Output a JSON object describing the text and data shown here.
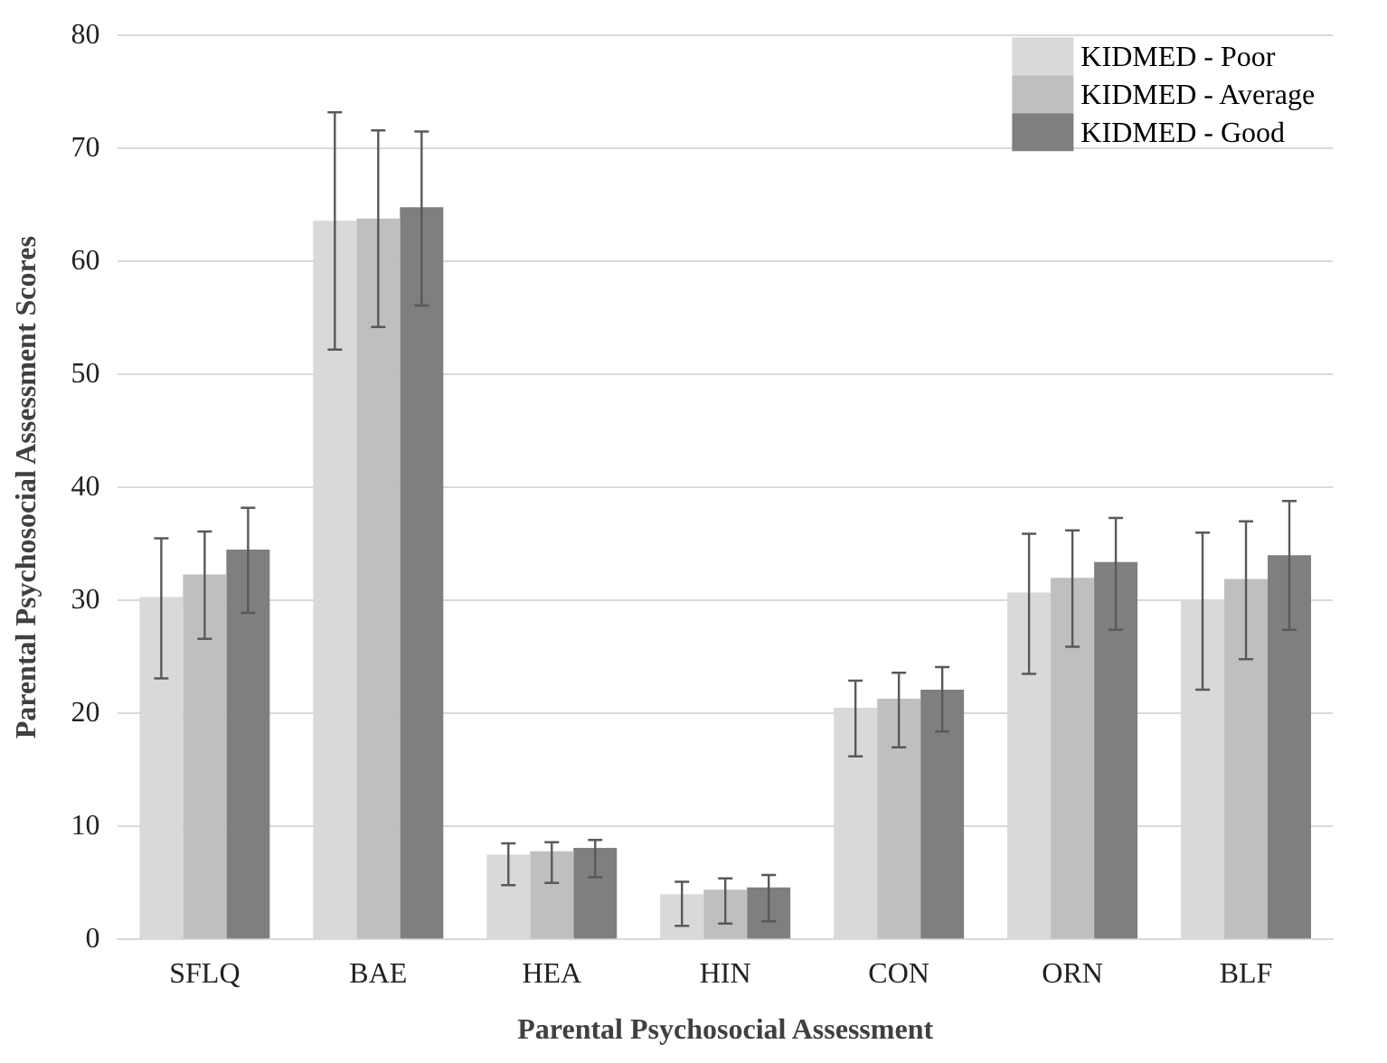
{
  "chart_data": {
    "type": "bar",
    "xlabel": "Parental Psychosocial Assessment",
    "ylabel": "Parental Psychosocial Assessment Scores",
    "categories": [
      "SFLQ",
      "BAE",
      "HEA",
      "HIN",
      "CON",
      "ORN",
      "BLF"
    ],
    "series": [
      {
        "name": "KIDMED - Poor",
        "color": "#d9d9d9",
        "values": [
          30.3,
          63.6,
          7.5,
          4.0,
          20.5,
          30.7,
          30.0
        ],
        "errors": [
          [
            23.1,
            35.5
          ],
          [
            52.2,
            73.2
          ],
          [
            4.8,
            8.5
          ],
          [
            1.2,
            5.1
          ],
          [
            16.2,
            22.9
          ],
          [
            23.5,
            35.9
          ],
          [
            22.1,
            36.0
          ]
        ]
      },
      {
        "name": "KIDMED - Average",
        "color": "#bfbfbf",
        "values": [
          32.3,
          63.8,
          7.8,
          4.4,
          21.3,
          32.0,
          31.9
        ],
        "errors": [
          [
            26.6,
            36.1
          ],
          [
            54.2,
            71.6
          ],
          [
            5.0,
            8.6
          ],
          [
            1.4,
            5.4
          ],
          [
            17.0,
            23.6
          ],
          [
            25.9,
            36.2
          ],
          [
            24.8,
            37.0
          ]
        ]
      },
      {
        "name": "KIDMED - Good",
        "color": "#7f7f7f",
        "values": [
          34.5,
          64.8,
          8.1,
          4.6,
          22.1,
          33.4,
          34.0
        ],
        "errors": [
          [
            28.9,
            38.2
          ],
          [
            56.1,
            71.5
          ],
          [
            5.5,
            8.8
          ],
          [
            1.6,
            5.7
          ],
          [
            18.4,
            24.1
          ],
          [
            27.4,
            37.3
          ],
          [
            27.4,
            38.8
          ]
        ]
      }
    ],
    "ylim": [
      0,
      80
    ],
    "yticks": [
      0,
      10,
      20,
      30,
      40,
      50,
      60,
      70,
      80
    ],
    "grid": "y",
    "legend": "top right"
  }
}
